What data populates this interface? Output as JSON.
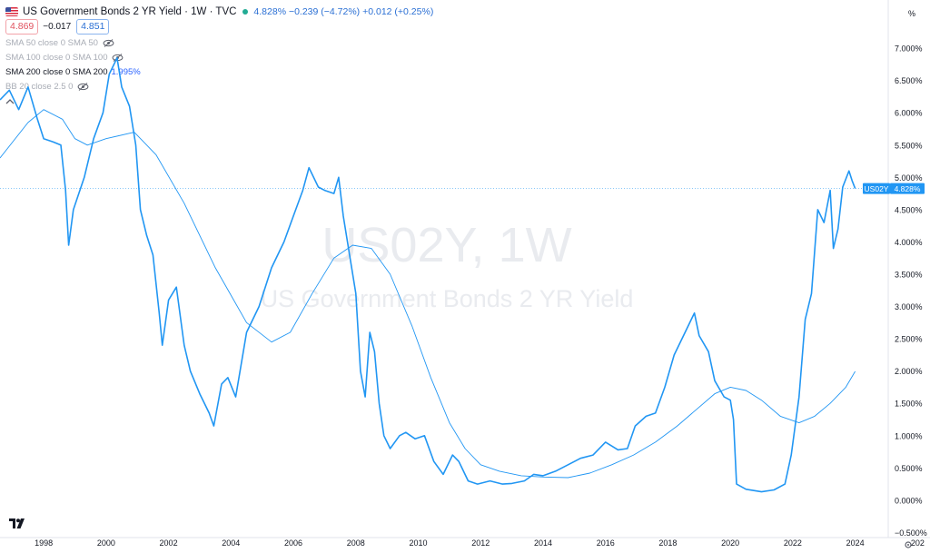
{
  "header": {
    "title": "US Government Bonds 2 YR Yield · 1W · TVC",
    "ohlc_summary": "4.828%  −0.239 (−4.72%)  +0.012 (+0.25%)",
    "bid": "4.869",
    "spread": "−0.017",
    "ask": "4.851"
  },
  "indicators": [
    {
      "label": "SMA 50 close 0 SMA 50",
      "value": "",
      "visible": false
    },
    {
      "label": "SMA 100 close 0 SMA 100",
      "value": "",
      "visible": false
    },
    {
      "label": "SMA 200 close 0 SMA 200",
      "value": "1.995%",
      "visible": true
    },
    {
      "label": "BB 20 close 2.5 0",
      "value": "",
      "visible": false
    }
  ],
  "watermark": {
    "symbol": "US02Y, 1W",
    "name": "US Government Bonds 2 YR Yield"
  },
  "price_tag": {
    "symbol": "US02Y",
    "value": "4.828%"
  },
  "colors": {
    "line": "#2196f3",
    "sma": "#2196f3",
    "grid": "#f0f3fa",
    "axis_text": "#131722",
    "watermark": "#e9ebef"
  },
  "chart_data": {
    "type": "line",
    "symbol": "US02Y",
    "interval": "1W",
    "x_ticks": [
      "1998",
      "2000",
      "2002",
      "2004",
      "2006",
      "2008",
      "2010",
      "2012",
      "2014",
      "2016",
      "2018",
      "2020",
      "2022",
      "2024",
      "202"
    ],
    "y_ticks": [
      "7.000%",
      "6.500%",
      "6.000%",
      "5.500%",
      "5.000%",
      "4.500%",
      "4.000%",
      "3.500%",
      "3.000%",
      "2.500%",
      "2.000%",
      "1.500%",
      "1.000%",
      "0.500%",
      "0.000%",
      "−0.500%"
    ],
    "y_top_label": "%",
    "ylim": [
      -0.55,
      7.55
    ],
    "xlim": [
      1996.6,
      2025.0
    ],
    "series": [
      {
        "name": "US02Y",
        "points": [
          [
            1996.6,
            6.2
          ],
          [
            1996.9,
            6.35
          ],
          [
            1997.2,
            6.05
          ],
          [
            1997.5,
            6.4
          ],
          [
            1997.8,
            5.9
          ],
          [
            1998.0,
            5.6
          ],
          [
            1998.3,
            5.55
          ],
          [
            1998.55,
            5.5
          ],
          [
            1998.7,
            4.8
          ],
          [
            1998.8,
            3.95
          ],
          [
            1998.95,
            4.5
          ],
          [
            1999.3,
            5.0
          ],
          [
            1999.6,
            5.6
          ],
          [
            1999.9,
            6.0
          ],
          [
            2000.1,
            6.6
          ],
          [
            2000.35,
            6.85
          ],
          [
            2000.5,
            6.4
          ],
          [
            2000.75,
            6.1
          ],
          [
            2000.95,
            5.5
          ],
          [
            2001.1,
            4.5
          ],
          [
            2001.3,
            4.1
          ],
          [
            2001.5,
            3.8
          ],
          [
            2001.7,
            2.9
          ],
          [
            2001.8,
            2.4
          ],
          [
            2002.0,
            3.1
          ],
          [
            2002.25,
            3.3
          ],
          [
            2002.5,
            2.4
          ],
          [
            2002.7,
            2.0
          ],
          [
            2003.0,
            1.65
          ],
          [
            2003.3,
            1.35
          ],
          [
            2003.45,
            1.15
          ],
          [
            2003.7,
            1.8
          ],
          [
            2003.9,
            1.9
          ],
          [
            2004.15,
            1.6
          ],
          [
            2004.5,
            2.6
          ],
          [
            2004.9,
            3.0
          ],
          [
            2005.3,
            3.6
          ],
          [
            2005.7,
            4.0
          ],
          [
            2006.0,
            4.4
          ],
          [
            2006.3,
            4.8
          ],
          [
            2006.5,
            5.15
          ],
          [
            2006.8,
            4.85
          ],
          [
            2007.0,
            4.8
          ],
          [
            2007.3,
            4.75
          ],
          [
            2007.45,
            5.0
          ],
          [
            2007.6,
            4.4
          ],
          [
            2007.8,
            3.8
          ],
          [
            2008.0,
            3.2
          ],
          [
            2008.15,
            2.0
          ],
          [
            2008.3,
            1.6
          ],
          [
            2008.45,
            2.6
          ],
          [
            2008.6,
            2.3
          ],
          [
            2008.75,
            1.5
          ],
          [
            2008.9,
            1.0
          ],
          [
            2009.1,
            0.8
          ],
          [
            2009.4,
            1.0
          ],
          [
            2009.6,
            1.05
          ],
          [
            2009.9,
            0.95
          ],
          [
            2010.2,
            1.0
          ],
          [
            2010.5,
            0.6
          ],
          [
            2010.8,
            0.4
          ],
          [
            2011.1,
            0.7
          ],
          [
            2011.3,
            0.6
          ],
          [
            2011.6,
            0.3
          ],
          [
            2011.9,
            0.25
          ],
          [
            2012.3,
            0.3
          ],
          [
            2012.7,
            0.25
          ],
          [
            2013.0,
            0.26
          ],
          [
            2013.4,
            0.3
          ],
          [
            2013.7,
            0.4
          ],
          [
            2014.0,
            0.38
          ],
          [
            2014.4,
            0.45
          ],
          [
            2014.8,
            0.55
          ],
          [
            2015.2,
            0.65
          ],
          [
            2015.6,
            0.7
          ],
          [
            2016.0,
            0.9
          ],
          [
            2016.4,
            0.78
          ],
          [
            2016.7,
            0.8
          ],
          [
            2016.95,
            1.15
          ],
          [
            2017.3,
            1.3
          ],
          [
            2017.6,
            1.35
          ],
          [
            2017.9,
            1.75
          ],
          [
            2018.2,
            2.25
          ],
          [
            2018.6,
            2.65
          ],
          [
            2018.85,
            2.9
          ],
          [
            2019.0,
            2.55
          ],
          [
            2019.3,
            2.3
          ],
          [
            2019.5,
            1.85
          ],
          [
            2019.8,
            1.6
          ],
          [
            2020.0,
            1.55
          ],
          [
            2020.1,
            1.25
          ],
          [
            2020.2,
            0.25
          ],
          [
            2020.5,
            0.17
          ],
          [
            2021.0,
            0.13
          ],
          [
            2021.4,
            0.16
          ],
          [
            2021.75,
            0.25
          ],
          [
            2021.95,
            0.7
          ],
          [
            2022.2,
            1.6
          ],
          [
            2022.4,
            2.8
          ],
          [
            2022.6,
            3.2
          ],
          [
            2022.8,
            4.5
          ],
          [
            2023.0,
            4.3
          ],
          [
            2023.2,
            4.8
          ],
          [
            2023.3,
            3.9
          ],
          [
            2023.45,
            4.2
          ],
          [
            2023.6,
            4.85
          ],
          [
            2023.8,
            5.1
          ],
          [
            2023.9,
            4.95
          ],
          [
            2024.0,
            4.828
          ]
        ]
      },
      {
        "name": "SMA 200",
        "points": [
          [
            1996.6,
            5.3
          ],
          [
            1997.5,
            5.85
          ],
          [
            1998.0,
            6.05
          ],
          [
            1998.6,
            5.9
          ],
          [
            1999.0,
            5.6
          ],
          [
            1999.4,
            5.5
          ],
          [
            2000.0,
            5.6
          ],
          [
            2000.9,
            5.7
          ],
          [
            2001.6,
            5.35
          ],
          [
            2002.5,
            4.6
          ],
          [
            2003.5,
            3.6
          ],
          [
            2004.5,
            2.75
          ],
          [
            2005.3,
            2.45
          ],
          [
            2005.9,
            2.6
          ],
          [
            2006.6,
            3.2
          ],
          [
            2007.3,
            3.75
          ],
          [
            2007.9,
            3.95
          ],
          [
            2008.5,
            3.9
          ],
          [
            2009.1,
            3.5
          ],
          [
            2009.8,
            2.7
          ],
          [
            2010.4,
            1.9
          ],
          [
            2011.0,
            1.2
          ],
          [
            2011.5,
            0.8
          ],
          [
            2012.0,
            0.55
          ],
          [
            2012.6,
            0.45
          ],
          [
            2013.3,
            0.38
          ],
          [
            2014.0,
            0.36
          ],
          [
            2014.8,
            0.35
          ],
          [
            2015.5,
            0.42
          ],
          [
            2016.2,
            0.55
          ],
          [
            2016.9,
            0.7
          ],
          [
            2017.6,
            0.9
          ],
          [
            2018.3,
            1.15
          ],
          [
            2018.9,
            1.4
          ],
          [
            2019.5,
            1.65
          ],
          [
            2020.0,
            1.75
          ],
          [
            2020.5,
            1.7
          ],
          [
            2021.0,
            1.55
          ],
          [
            2021.6,
            1.3
          ],
          [
            2022.2,
            1.2
          ],
          [
            2022.7,
            1.3
          ],
          [
            2023.2,
            1.5
          ],
          [
            2023.7,
            1.75
          ],
          [
            2024.0,
            1.995
          ]
        ]
      }
    ]
  }
}
